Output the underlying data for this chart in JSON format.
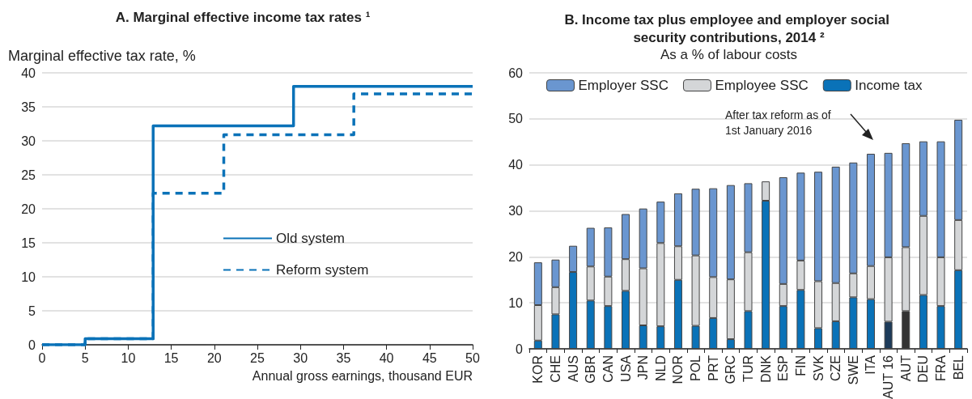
{
  "chart_data": [
    {
      "type": "step",
      "title": "A. Marginal effective income tax rates ¹",
      "ylabel": "Marginal effective tax rate, %",
      "xlabel": "Annual gross earnings, thousand EUR",
      "series": [
        {
          "name": "Old system",
          "color": "#0a72b8",
          "line_style": "solid",
          "x": [
            0,
            5,
            12.9,
            29.2,
            50
          ],
          "values": [
            0,
            0.9,
            32.2,
            38,
            38
          ]
        },
        {
          "name": "Reform system",
          "color": "#0a72b8",
          "line_style": "dashed",
          "x": [
            0,
            5,
            12.9,
            21.1,
            36.2,
            50
          ],
          "values": [
            0,
            0.9,
            22.3,
            30.9,
            36.9,
            36.9
          ]
        }
      ],
      "xlim": [
        0,
        50
      ],
      "xticks": [
        0,
        5,
        10,
        15,
        20,
        25,
        30,
        35,
        40,
        45,
        50
      ],
      "ylim": [
        0,
        40
      ],
      "yticks": [
        0,
        5,
        10,
        15,
        20,
        25,
        30,
        35,
        40
      ],
      "grid": "y",
      "legend": "center",
      "marker": "none"
    },
    {
      "type": "bar",
      "title": "B. Income tax plus employee and employer social security contributions, 2014 ²",
      "subtitle": "As a % of labour costs",
      "categories": [
        "KOR",
        "CHE",
        "AUS",
        "GBR",
        "CAN",
        "USA",
        "JPN",
        "NLD",
        "NOR",
        "POL",
        "PRT",
        "GRC",
        "TUR",
        "DNK",
        "ESP",
        "FIN",
        "SVK",
        "CZE",
        "SWE",
        "ITA",
        "AUT 16",
        "AUT",
        "DEU",
        "FRA",
        "BEL"
      ],
      "stacked": true,
      "series": [
        {
          "name": "Income tax",
          "color": "#0a72b8",
          "colors": [
            "#0a72b8",
            "#0a72b8",
            "#0a72b8",
            "#0a72b8",
            "#0a72b8",
            "#0a72b8",
            "#0a72b8",
            "#0a72b8",
            "#0a72b8",
            "#0a72b8",
            "#0a72b8",
            "#0a72b8",
            "#0a72b8",
            "#0a72b8",
            "#0a72b8",
            "#0a72b8",
            "#0a72b8",
            "#0a72b8",
            "#0a72b8",
            "#0a72b8",
            "#1d3b5a",
            "#333333",
            "#0a72b8",
            "#0a72b8",
            "#0a72b8"
          ],
          "values": [
            1.8,
            7.5,
            16.7,
            10.5,
            9.3,
            12.6,
            5.1,
            4.9,
            15.0,
            5.0,
            6.7,
            2.1,
            8.2,
            32.2,
            9.3,
            12.8,
            4.5,
            6.0,
            11.2,
            10.8,
            5.9,
            8.2,
            11.7,
            9.3,
            17.1
          ]
        },
        {
          "name": "Employee SSC",
          "color": "#d4d6d8",
          "values": [
            7.7,
            5.9,
            0,
            7.4,
            6.4,
            6.9,
            12.4,
            18.1,
            7.3,
            15.3,
            8.9,
            13.0,
            12.8,
            4.2,
            4.8,
            6.4,
            10.2,
            8.3,
            5.2,
            7.2,
            14.0,
            13.9,
            17.2,
            10.6,
            10.9
          ]
        },
        {
          "name": "Employer SSC",
          "color": "#6a96d0",
          "values": [
            9.3,
            6.0,
            5.7,
            8.4,
            10.7,
            9.8,
            13.0,
            9.0,
            11.5,
            14.5,
            19.3,
            20.5,
            15.0,
            0,
            23.2,
            19.1,
            23.8,
            25.3,
            24.1,
            24.4,
            22.7,
            22.6,
            16.2,
            25.2,
            21.8
          ]
        }
      ],
      "annotations": [
        "After tax reform as of\n1st January 2016"
      ],
      "ylim": [
        0,
        60
      ],
      "yticks": [
        0,
        10,
        20,
        30,
        40,
        50,
        60
      ],
      "grid": "y",
      "legend": "top"
    }
  ]
}
